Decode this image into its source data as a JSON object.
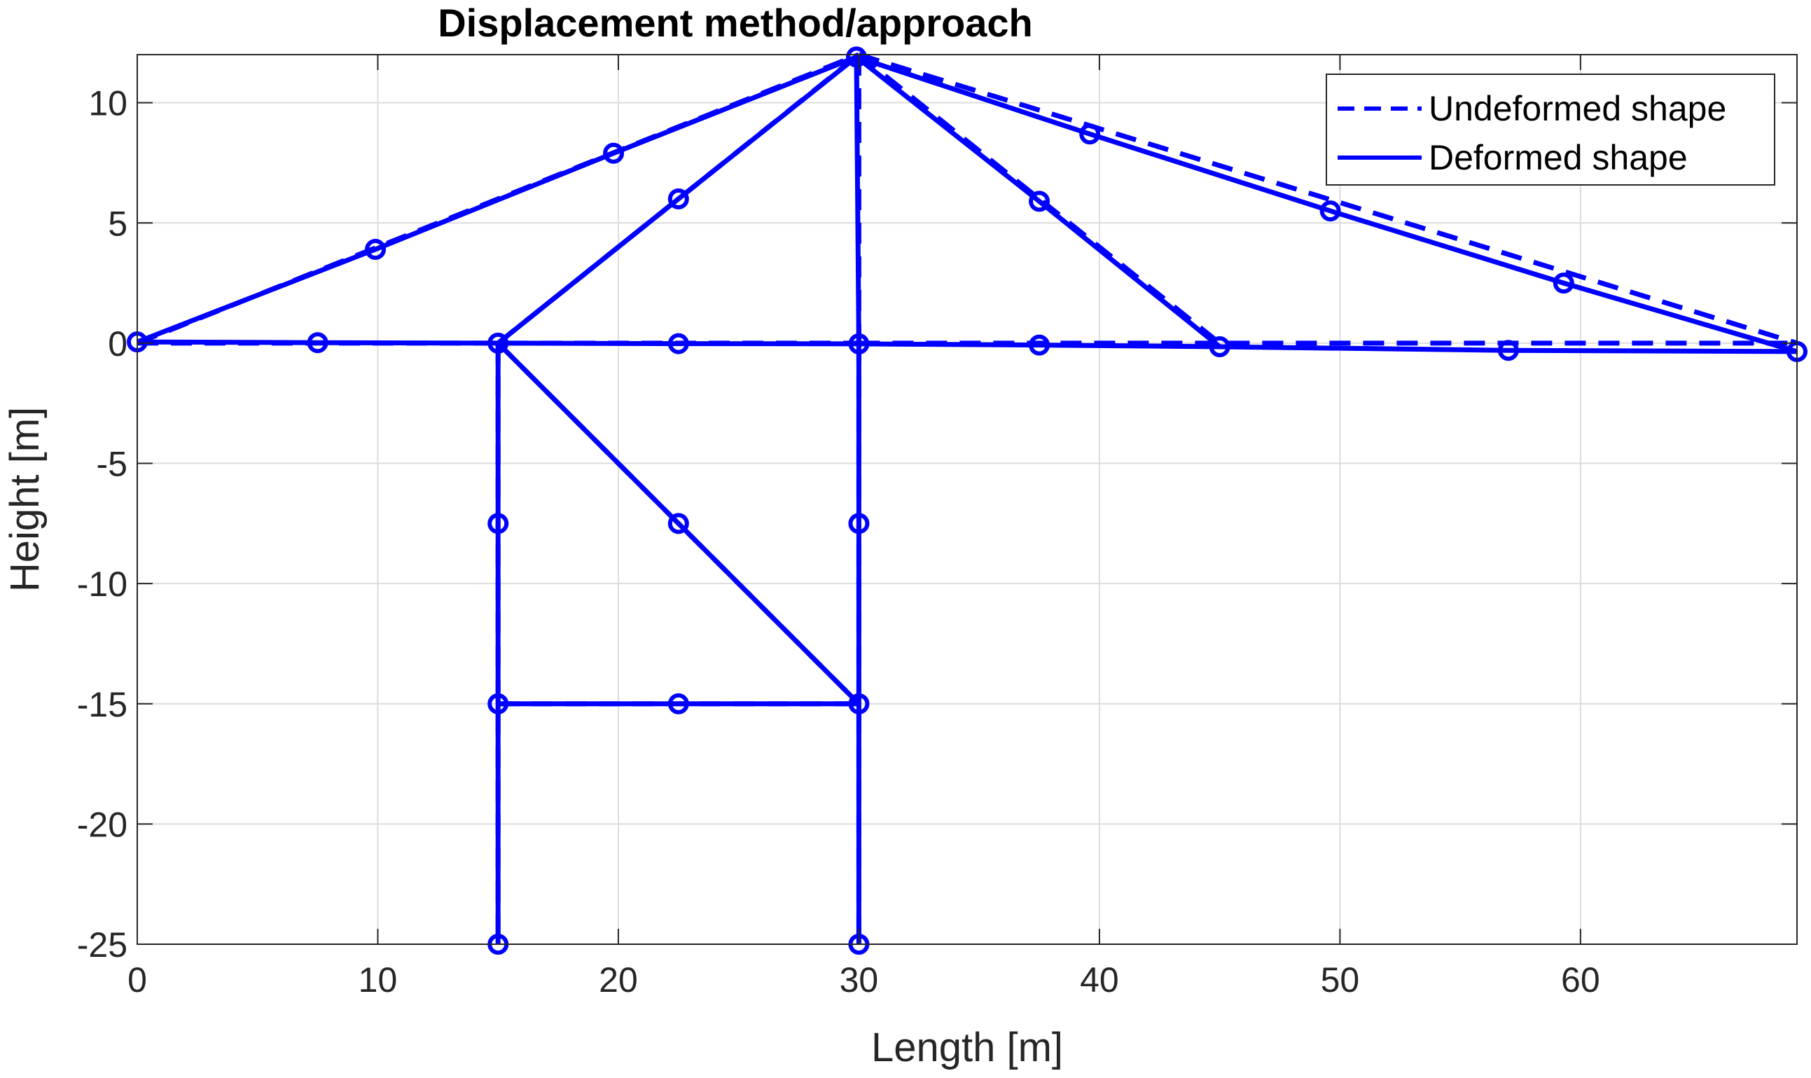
{
  "chart_data": {
    "type": "line",
    "title": "Displacement method/approach",
    "xlabel": "Length [m]",
    "ylabel": "Height [m]",
    "xlim": [
      0,
      69
    ],
    "ylim": [
      -25,
      12
    ],
    "xticks": [
      0,
      10,
      20,
      30,
      40,
      50,
      60
    ],
    "yticks": [
      -25,
      -20,
      -15,
      -10,
      -5,
      0,
      5,
      10
    ],
    "xtick_labels": [
      "0",
      "10",
      "20",
      "30",
      "40",
      "50",
      "60"
    ],
    "ytick_labels": [
      "-25",
      "-20",
      "-15",
      "-10",
      "-5",
      "0",
      "5",
      "10"
    ],
    "grid": true,
    "legend_position": "top-right",
    "color": "#0000ff",
    "series": [
      {
        "name": "Undeformed shape",
        "style": "dashed",
        "marker": "none",
        "segments": [
          [
            [
              0,
              0
            ],
            [
              30,
              0
            ]
          ],
          [
            [
              30,
              0
            ],
            [
              69,
              0
            ]
          ],
          [
            [
              0,
              0
            ],
            [
              30,
              12
            ]
          ],
          [
            [
              30,
              12
            ],
            [
              69,
              0
            ]
          ],
          [
            [
              15,
              0
            ],
            [
              30,
              12
            ]
          ],
          [
            [
              30,
              12
            ],
            [
              45,
              0
            ]
          ],
          [
            [
              30,
              12
            ],
            [
              30,
              0
            ]
          ],
          [
            [
              15,
              0
            ],
            [
              15,
              -25
            ]
          ],
          [
            [
              30,
              0
            ],
            [
              30,
              -25
            ]
          ],
          [
            [
              15,
              0
            ],
            [
              30,
              -15
            ]
          ],
          [
            [
              15,
              -15
            ],
            [
              30,
              -15
            ]
          ]
        ]
      },
      {
        "name": "Deformed shape",
        "style": "solid",
        "marker": "circle",
        "segments": [
          [
            [
              0,
              0.05
            ],
            [
              7.5,
              0.02
            ],
            [
              15,
              0
            ],
            [
              22.5,
              -0.02
            ],
            [
              30,
              -0.03
            ],
            [
              37.5,
              -0.08
            ],
            [
              45,
              -0.15
            ],
            [
              57,
              -0.3
            ],
            [
              69,
              -0.35
            ]
          ],
          [
            [
              0,
              0.05
            ],
            [
              9.9,
              3.9
            ],
            [
              19.8,
              7.9
            ],
            [
              29.9,
              11.9
            ],
            [
              39.6,
              8.7
            ],
            [
              49.6,
              5.5
            ],
            [
              59.3,
              2.5
            ],
            [
              69,
              -0.35
            ]
          ],
          [
            [
              15,
              0
            ],
            [
              22.5,
              6
            ],
            [
              29.9,
              11.9
            ],
            [
              37.5,
              5.9
            ],
            [
              45,
              -0.15
            ]
          ],
          [
            [
              29.9,
              11.9
            ],
            [
              30,
              -0.03
            ],
            [
              30,
              -7.5
            ],
            [
              30,
              -15
            ],
            [
              30,
              -25
            ]
          ],
          [
            [
              15,
              0
            ],
            [
              15,
              -7.5
            ],
            [
              15,
              -15
            ],
            [
              15,
              -25
            ]
          ],
          [
            [
              15,
              0
            ],
            [
              22.5,
              -7.5
            ],
            [
              30,
              -15
            ]
          ],
          [
            [
              15,
              -15
            ],
            [
              22.5,
              -15
            ],
            [
              30,
              -15
            ]
          ]
        ]
      }
    ]
  }
}
